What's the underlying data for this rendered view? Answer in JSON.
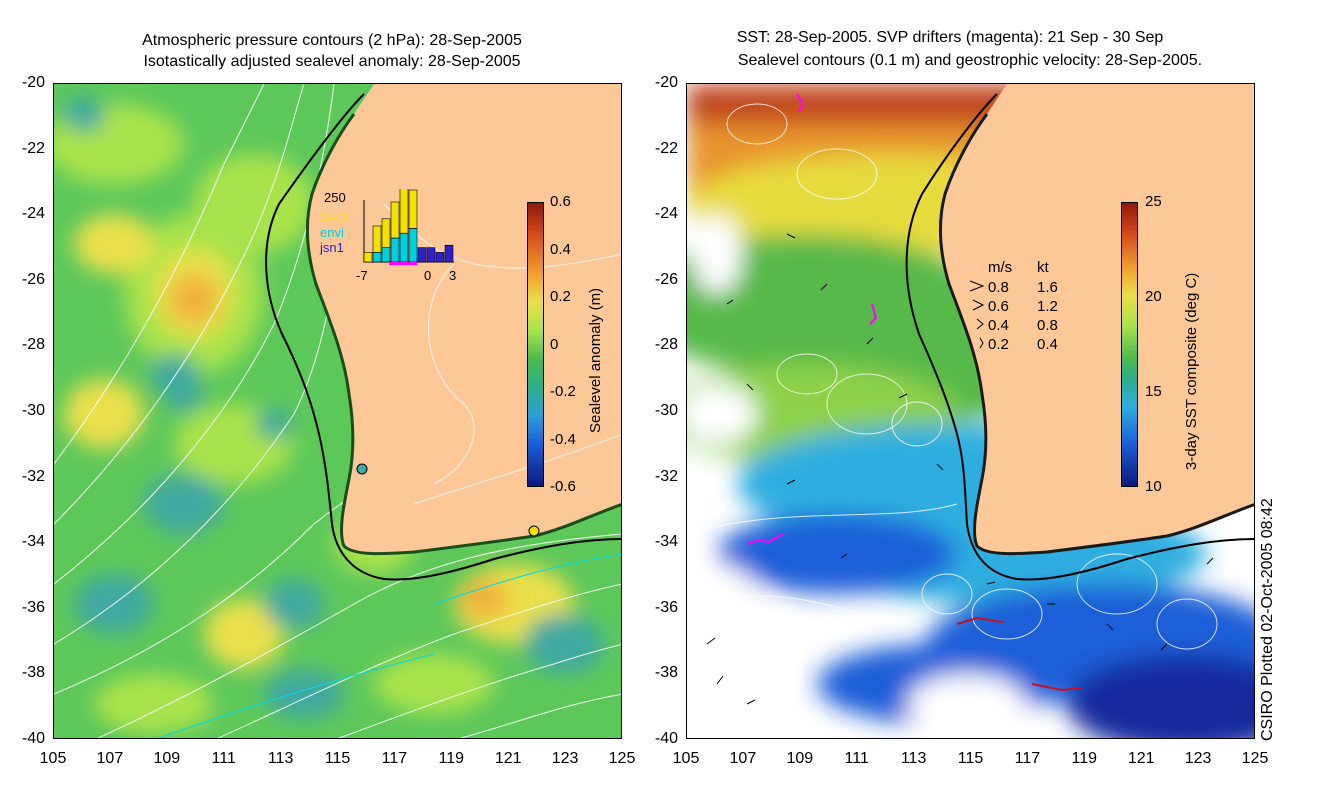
{
  "colors": {
    "land": "#fcc898",
    "ssh_green": "#5dc85a",
    "ssh_light": "#a9e34c",
    "ssh_yellow": "#eae04b",
    "ssh_orange": "#f0b23e",
    "ssh_blue": "#3fa9a0",
    "sst_red": "#c0451a",
    "sst_orange": "#e8942e",
    "sst_yellow": "#e7dc3e",
    "sst_green": "#56b94a",
    "sst_cyan": "#2faee0",
    "sst_blue": "#1c5fd8",
    "sst_navy": "#142b9e",
    "drifter": "#ff00ff",
    "coast": "#000000",
    "contour": "#ffffff",
    "cyan_line": "#00d8e8"
  },
  "left": {
    "title_line1": "Atmospheric pressure contours (2 hPa): 28-Sep-2005",
    "title_line2": "Isotastically adjusted sealevel anomaly: 28-Sep-2005",
    "colorbar_label": "Sealevel anomaly (m)",
    "colorbar_ticks": [
      "0.6",
      "0.4",
      "0.2",
      "0",
      "-0.2",
      "-0.4",
      "-0.6"
    ],
    "colorbar_range": [
      -0.6,
      0.6
    ],
    "inset": {
      "ymax_label": "250",
      "legend": [
        {
          "name": "GFO",
          "color": "#f5e100"
        },
        {
          "name": "envi",
          "color": "#00cfe0"
        },
        {
          "name": "jsn1",
          "color": "#3020c8"
        }
      ],
      "xticks": [
        "-7",
        "0",
        "3"
      ],
      "bars": [
        {
          "day": -7,
          "GFO": 40,
          "envi": 0,
          "jsn1": 0
        },
        {
          "day": -6,
          "GFO": 110,
          "envi": 40,
          "jsn1": 0
        },
        {
          "day": -5,
          "GFO": 120,
          "envi": 60,
          "jsn1": 0
        },
        {
          "day": -4,
          "GFO": 150,
          "envi": 100,
          "jsn1": 0
        },
        {
          "day": -3,
          "GFO": 200,
          "envi": 120,
          "jsn1": 0
        },
        {
          "day": -2,
          "GFO": 160,
          "envi": 140,
          "jsn1": 0
        },
        {
          "day": -1,
          "GFO": 0,
          "envi": 0,
          "jsn1": 60
        },
        {
          "day": 0,
          "GFO": 0,
          "envi": 0,
          "jsn1": 60
        },
        {
          "day": 1,
          "GFO": 0,
          "envi": 0,
          "jsn1": 40
        },
        {
          "day": 2,
          "GFO": 0,
          "envi": 0,
          "jsn1": 70
        }
      ]
    }
  },
  "right": {
    "title_line1": "SST: 28-Sep-2005. SVP drifters (magenta): 21 Sep - 30 Sep",
    "title_line2": "Sealevel contours (0.1 m) and geostrophic velocity: 28-Sep-2005.",
    "colorbar_label": "3-day SST composite (deg C)",
    "colorbar_ticks": [
      "25",
      "20",
      "15",
      "10"
    ],
    "colorbar_range": [
      10,
      25
    ],
    "velocity_legend": {
      "header_ms": "m/s",
      "header_kt": "kt",
      "rows": [
        {
          "ms": "0.8",
          "kt": "1.6"
        },
        {
          "ms": "0.6",
          "kt": "1.2"
        },
        {
          "ms": "0.4",
          "kt": "0.8"
        },
        {
          "ms": "0.2",
          "kt": "0.4"
        }
      ]
    }
  },
  "axes": {
    "y_ticks": [
      "-20",
      "-22",
      "-24",
      "-26",
      "-28",
      "-30",
      "-32",
      "-34",
      "-36",
      "-38",
      "-40"
    ],
    "x_ticks": [
      "105",
      "107",
      "109",
      "111",
      "113",
      "115",
      "117",
      "119",
      "121",
      "123",
      "125"
    ],
    "lat_range": [
      -40,
      -20
    ],
    "lon_range": [
      105,
      125
    ]
  },
  "credit": "CSIRO Plotted 02-Oct-2005 08:42"
}
